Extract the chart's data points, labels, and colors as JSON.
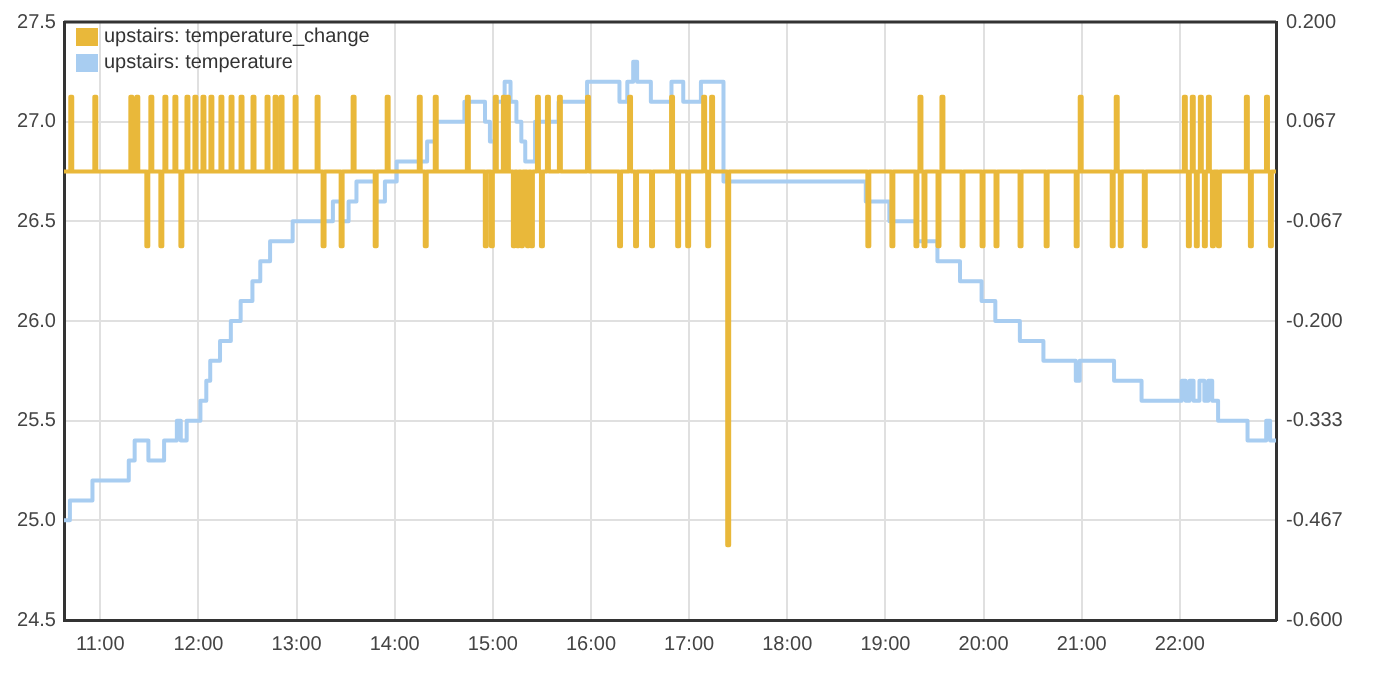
{
  "chart_data": {
    "type": "step",
    "xlim": [
      10.63,
      22.98
    ],
    "xticks": [
      {
        "value": 11,
        "label": "11:00"
      },
      {
        "value": 12,
        "label": "12:00"
      },
      {
        "value": 13,
        "label": "13:00"
      },
      {
        "value": 14,
        "label": "14:00"
      },
      {
        "value": 15,
        "label": "15:00"
      },
      {
        "value": 16,
        "label": "16:00"
      },
      {
        "value": 17,
        "label": "17:00"
      },
      {
        "value": 18,
        "label": "18:00"
      },
      {
        "value": 19,
        "label": "19:00"
      },
      {
        "value": 20,
        "label": "20:00"
      },
      {
        "value": 21,
        "label": "21:00"
      },
      {
        "value": 22,
        "label": "22:00"
      }
    ],
    "ylim": [
      24.5,
      27.5
    ],
    "yticks": [
      {
        "value": 24.5,
        "label": "24.5"
      },
      {
        "value": 25,
        "label": "25.0"
      },
      {
        "value": 25.5,
        "label": "25.5"
      },
      {
        "value": 26,
        "label": "26.0"
      },
      {
        "value": 26.5,
        "label": "26.5"
      },
      {
        "value": 27,
        "label": "27.0"
      },
      {
        "value": 27.5,
        "label": "27.5"
      }
    ],
    "y2lim": [
      -0.6,
      0.2
    ],
    "y2ticks": [
      {
        "value": -0.6,
        "label": "-0.600"
      },
      {
        "value": -0.4667,
        "label": "-0.467"
      },
      {
        "value": -0.3333,
        "label": "-0.333"
      },
      {
        "value": -0.2,
        "label": "-0.200"
      },
      {
        "value": -0.0667,
        "label": "-0.067"
      },
      {
        "value": 0.0667,
        "label": "0.067"
      },
      {
        "value": 0.2,
        "label": "0.200"
      }
    ],
    "grid": true,
    "legend": "top left",
    "marker": "none",
    "series": [
      {
        "name": "upstairs: temperature_change",
        "color": "#e9b83a",
        "axis": "y2",
        "x": [
          10.63,
          10.694,
          10.714,
          10.939,
          10.959,
          11.306,
          11.326,
          11.367,
          11.387,
          11.469,
          11.489,
          11.51,
          11.53,
          11.612,
          11.632,
          11.653,
          11.673,
          11.755,
          11.775,
          11.816,
          11.836,
          11.878,
          11.898,
          11.959,
          11.979,
          12.041,
          12.061,
          12.122,
          12.142,
          12.224,
          12.244,
          12.327,
          12.347,
          12.429,
          12.449,
          12.551,
          12.571,
          12.694,
          12.714,
          12.776,
          12.796,
          12.837,
          12.857,
          12.98,
          13.0,
          13.204,
          13.224,
          13.265,
          13.285,
          13.449,
          13.469,
          13.571,
          13.591,
          13.796,
          13.816,
          13.918,
          13.938,
          14.245,
          14.265,
          14.306,
          14.326,
          14.408,
          14.428,
          14.735,
          14.755,
          14.918,
          14.938,
          14.98,
          15.0,
          15.02,
          15.04,
          15.102,
          15.122,
          15.143,
          15.163,
          15.204,
          15.224,
          15.245,
          15.265,
          15.286,
          15.306,
          15.347,
          15.367,
          15.388,
          15.408,
          15.449,
          15.469,
          15.49,
          15.51,
          15.551,
          15.571,
          15.673,
          15.693,
          15.959,
          15.979,
          16.286,
          16.306,
          16.388,
          16.408,
          16.449,
          16.469,
          16.612,
          16.632,
          16.816,
          16.836,
          16.878,
          16.898,
          16.98,
          17.0,
          17.143,
          17.163,
          17.184,
          17.204,
          17.224,
          17.244,
          17.388,
          17.408,
          18.816,
          18.836,
          19.061,
          19.081,
          19.306,
          19.326,
          19.347,
          19.367,
          19.388,
          19.408,
          19.531,
          19.551,
          19.571,
          19.591,
          19.776,
          19.796,
          19.98,
          20.0,
          20.122,
          20.142,
          20.367,
          20.387,
          20.633,
          20.653,
          20.939,
          20.959,
          20.98,
          21.0,
          21.306,
          21.326,
          21.347,
          21.367,
          21.388,
          21.408,
          21.633,
          21.653,
          22.041,
          22.061,
          22.082,
          22.102,
          22.122,
          22.142,
          22.163,
          22.183,
          22.204,
          22.224,
          22.245,
          22.265,
          22.286,
          22.306,
          22.327,
          22.347,
          22.388,
          22.408,
          22.673,
          22.693,
          22.714,
          22.734,
          22.878,
          22.898,
          22.918,
          22.938,
          22.98
        ],
        "values": [
          0,
          0.1,
          0,
          0.1,
          0,
          0.1,
          0,
          0.1,
          0,
          -0.1,
          0,
          0.1,
          0,
          -0.1,
          0,
          0.1,
          0,
          0.1,
          0,
          -0.1,
          0,
          0.1,
          0,
          0.1,
          0,
          0.1,
          0,
          0.1,
          0,
          0.1,
          0,
          0.1,
          0,
          0.1,
          0,
          0.1,
          0,
          0.1,
          0,
          0.1,
          0,
          0.1,
          0,
          0.1,
          0,
          0.1,
          0,
          -0.1,
          0,
          -0.1,
          0,
          0.1,
          0,
          -0.1,
          0,
          0.1,
          0,
          0.1,
          0,
          -0.1,
          0,
          0.1,
          0,
          0.1,
          0,
          -0.1,
          0,
          -0.1,
          0,
          0.1,
          0,
          0.1,
          0,
          0.1,
          0,
          -0.1,
          0,
          -0.1,
          0,
          -0.1,
          0,
          -0.1,
          0,
          -0.1,
          0,
          0.1,
          0,
          -0.1,
          0,
          0.1,
          0,
          0.1,
          0,
          0.1,
          0,
          -0.1,
          0,
          0.1,
          0,
          -0.1,
          0,
          -0.1,
          0,
          0.1,
          0,
          -0.1,
          0,
          -0.1,
          0,
          0.1,
          0,
          -0.1,
          0,
          0.1,
          0,
          -0.5,
          0,
          -0.1,
          0,
          -0.1,
          0,
          -0.1,
          0,
          0.1,
          0,
          -0.1,
          0,
          -0.1,
          0,
          0.1,
          0,
          -0.1,
          0,
          -0.1,
          0,
          -0.1,
          0,
          -0.1,
          0,
          -0.1,
          0,
          -0.1,
          0,
          0.1,
          0,
          -0.1,
          0,
          0.1,
          0,
          -0.1,
          0,
          -0.1,
          0,
          0.1,
          0,
          -0.1,
          0,
          0.1,
          0,
          -0.1,
          0,
          0.1,
          0,
          -0.1,
          0,
          0.1,
          0,
          -0.1,
          0,
          -0.1,
          0,
          0.1,
          0,
          -0.1,
          0,
          0.1,
          0,
          -0.1,
          0,
          0
        ]
      },
      {
        "name": "upstairs: temperature",
        "color": "#a8cdf1",
        "x": [
          10.63,
          10.69,
          10.92,
          11.29,
          11.35,
          11.49,
          11.65,
          11.78,
          11.82,
          11.88,
          12.02,
          12.08,
          12.12,
          12.22,
          12.33,
          12.43,
          12.55,
          12.63,
          12.73,
          12.96,
          13.37,
          13.45,
          13.53,
          13.61,
          13.8,
          13.9,
          14.02,
          14.33,
          14.41,
          14.71,
          14.92,
          14.97,
          15.02,
          15.12,
          15.18,
          15.24,
          15.29,
          15.33,
          15.43,
          15.67,
          15.96,
          16.29,
          16.37,
          16.43,
          16.47,
          16.61,
          16.82,
          16.94,
          17.12,
          17.35,
          18.8,
          19.04,
          19.31,
          19.53,
          19.76,
          19.98,
          20.12,
          20.37,
          20.61,
          20.94,
          20.98,
          21.33,
          21.61,
          22.02,
          22.06,
          22.1,
          22.14,
          22.2,
          22.25,
          22.29,
          22.33,
          22.39,
          22.69,
          22.88,
          22.92,
          22.98
        ],
        "values": [
          25.0,
          25.1,
          25.2,
          25.3,
          25.4,
          25.3,
          25.4,
          25.5,
          25.4,
          25.5,
          25.6,
          25.7,
          25.8,
          25.9,
          26.0,
          26.1,
          26.2,
          26.3,
          26.4,
          26.5,
          26.6,
          26.5,
          26.6,
          26.7,
          26.6,
          26.7,
          26.8,
          26.9,
          27.0,
          27.1,
          27.0,
          26.9,
          27.1,
          27.2,
          27.1,
          27.0,
          26.9,
          26.8,
          27.0,
          27.1,
          27.2,
          27.1,
          27.2,
          27.3,
          27.2,
          27.1,
          27.2,
          27.1,
          27.2,
          26.7,
          26.6,
          26.5,
          26.4,
          26.3,
          26.2,
          26.1,
          26.0,
          25.9,
          25.8,
          25.7,
          25.8,
          25.7,
          25.6,
          25.7,
          25.6,
          25.7,
          25.6,
          25.7,
          25.6,
          25.7,
          25.6,
          25.5,
          25.4,
          25.5,
          25.4,
          25.4
        ]
      }
    ]
  }
}
